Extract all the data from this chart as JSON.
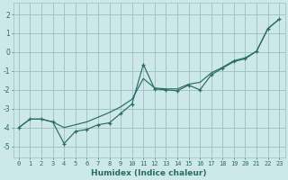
{
  "xlabel": "Humidex (Indice chaleur)",
  "background_color": "#cce8e8",
  "grid_color": "#9bbfbf",
  "line_color": "#2a6b65",
  "xlim": [
    -0.5,
    23.5
  ],
  "ylim": [
    -5.6,
    2.6
  ],
  "xticks": [
    0,
    1,
    2,
    3,
    4,
    5,
    6,
    7,
    8,
    9,
    10,
    11,
    12,
    13,
    14,
    15,
    16,
    17,
    18,
    19,
    20,
    21,
    22,
    23
  ],
  "yticks": [
    -5,
    -4,
    -3,
    -2,
    -1,
    0,
    1,
    2
  ],
  "line1_x": [
    0,
    1,
    2,
    3,
    4,
    5,
    6,
    7,
    8,
    9,
    10,
    11,
    12,
    13,
    14,
    15,
    16,
    17,
    18,
    19,
    20,
    21,
    22,
    23
  ],
  "line1_y": [
    -4.0,
    -3.55,
    -3.55,
    -3.7,
    -4.85,
    -4.2,
    -4.1,
    -3.85,
    -3.75,
    -3.25,
    -2.75,
    -0.65,
    -1.95,
    -2.0,
    -2.05,
    -1.75,
    -2.0,
    -1.2,
    -0.85,
    -0.5,
    -0.35,
    0.05,
    1.25,
    1.75
  ],
  "line2_x": [
    0,
    1,
    2,
    3,
    4,
    5,
    6,
    7,
    8,
    9,
    10,
    11,
    12,
    13,
    14,
    15,
    16,
    17,
    18,
    19,
    20,
    21,
    22,
    23
  ],
  "line2_y": [
    -4.0,
    -3.55,
    -3.55,
    -3.7,
    -4.0,
    -3.85,
    -3.7,
    -3.45,
    -3.2,
    -2.9,
    -2.5,
    -1.4,
    -1.9,
    -1.95,
    -1.95,
    -1.7,
    -1.6,
    -1.1,
    -0.8,
    -0.45,
    -0.3,
    0.05,
    1.25,
    1.75
  ]
}
